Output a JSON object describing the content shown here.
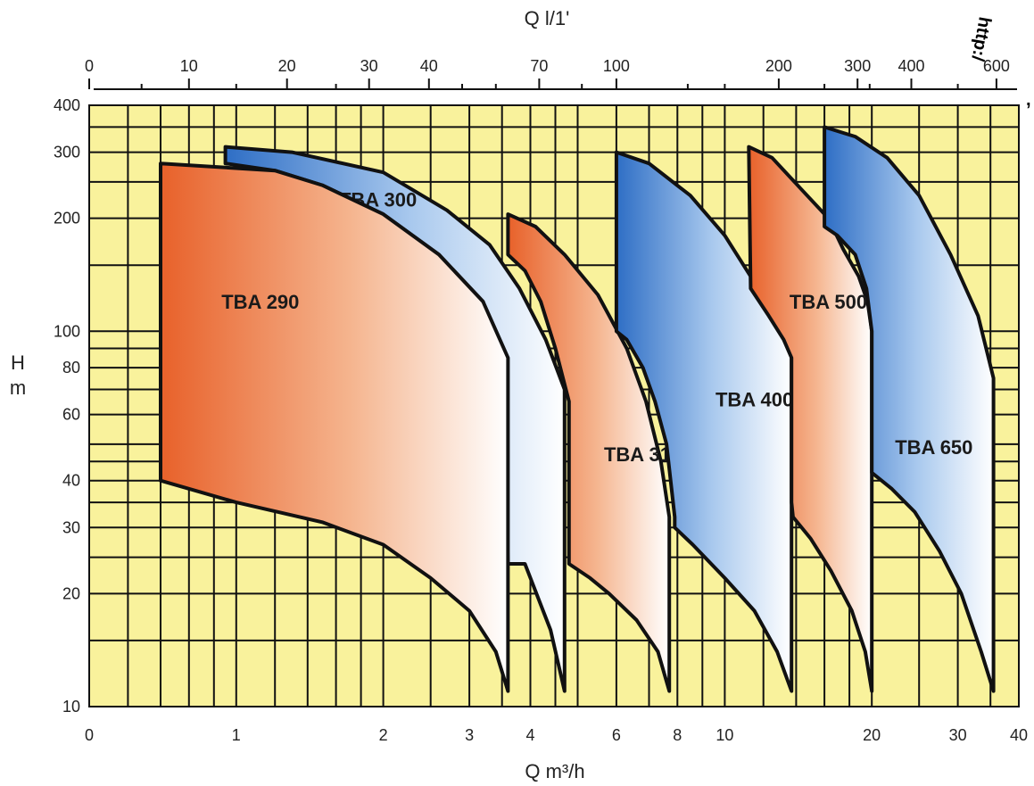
{
  "chart_data": {
    "type": "area",
    "title": "",
    "xlabel": "Q m³/h",
    "x2label": "Q l/1'",
    "ylabel_line1": "H",
    "ylabel_line2": "m",
    "xscale": "log",
    "yscale": "log",
    "xlim": [
      0.5,
      40
    ],
    "ylim": [
      10,
      400
    ],
    "x2_per_x": 16.6667,
    "x_ticks": [
      {
        "v": 0.5,
        "label": "0"
      },
      {
        "v": 1,
        "label": "1"
      },
      {
        "v": 2,
        "label": "2"
      },
      {
        "v": 3,
        "label": "3"
      },
      {
        "v": 4,
        "label": "4"
      },
      {
        "v": 6,
        "label": "6"
      },
      {
        "v": 8,
        "label": "8"
      },
      {
        "v": 10,
        "label": "10"
      },
      {
        "v": 20,
        "label": "20"
      },
      {
        "v": 30,
        "label": "30"
      },
      {
        "v": 40,
        "label": "40"
      }
    ],
    "x_grid": [
      0.5,
      0.6,
      0.7,
      0.8,
      0.9,
      1,
      1.2,
      1.4,
      1.6,
      1.8,
      2,
      2.5,
      3,
      3.5,
      4,
      4.5,
      5,
      6,
      7,
      8,
      9,
      10,
      12,
      14,
      16,
      18,
      20,
      25,
      30,
      35,
      40
    ],
    "x2_ticks": [
      {
        "v": 0.5,
        "label": "0"
      },
      {
        "v": 0.8,
        "label": "10"
      },
      {
        "v": 1.27,
        "label": "20"
      },
      {
        "v": 1.87,
        "label": "30"
      },
      {
        "v": 2.48,
        "label": "40"
      },
      {
        "v": 4.17,
        "label": "70"
      },
      {
        "v": 6.0,
        "label": "100"
      },
      {
        "v": 12.9,
        "label": "200"
      },
      {
        "v": 18.7,
        "label": "300"
      },
      {
        "v": 24.1,
        "label": "400"
      },
      {
        "v": 36.0,
        "label": "600"
      }
    ],
    "x2_minor": [
      0.64,
      1.0,
      1.6,
      2.9,
      3.4,
      5.1,
      8.4,
      10.0,
      16.0,
      19.8,
      30.0
    ],
    "y_ticks": [
      {
        "v": 10,
        "label": "10"
      },
      {
        "v": 20,
        "label": "20"
      },
      {
        "v": 30,
        "label": "30"
      },
      {
        "v": 40,
        "label": "40"
      },
      {
        "v": 60,
        "label": "60"
      },
      {
        "v": 80,
        "label": "80"
      },
      {
        "v": 100,
        "label": "100"
      },
      {
        "v": 200,
        "label": "200"
      },
      {
        "v": 300,
        "label": "300"
      },
      {
        "v": 400,
        "label": "400"
      }
    ],
    "y_grid": [
      10,
      15,
      20,
      25,
      30,
      35,
      40,
      45,
      50,
      60,
      70,
      80,
      90,
      100,
      150,
      200,
      250,
      300,
      350,
      400
    ],
    "series": [
      {
        "name": "TBA 300",
        "color": "blue",
        "label_at": [
          1.95,
          215
        ],
        "boundary": [
          [
            0.95,
            280
          ],
          [
            0.95,
            310
          ],
          [
            1.3,
            300
          ],
          [
            2.0,
            265
          ],
          [
            2.7,
            210
          ],
          [
            3.3,
            170
          ],
          [
            3.8,
            130
          ],
          [
            4.3,
            95
          ],
          [
            4.7,
            70
          ],
          [
            4.7,
            11
          ],
          [
            4.4,
            16
          ],
          [
            3.9,
            24
          ],
          [
            3.6,
            24
          ],
          [
            3.5,
            85
          ],
          [
            3.2,
            120
          ],
          [
            2.6,
            160
          ],
          [
            2.0,
            205
          ],
          [
            1.5,
            245
          ],
          [
            1.2,
            268
          ],
          [
            0.95,
            280
          ]
        ]
      },
      {
        "name": "TBA 290",
        "color": "orange",
        "label_at": [
          1.12,
          115
        ],
        "boundary": [
          [
            0.7,
            280
          ],
          [
            1.2,
            268
          ],
          [
            1.5,
            245
          ],
          [
            2.0,
            205
          ],
          [
            2.6,
            160
          ],
          [
            3.2,
            120
          ],
          [
            3.6,
            85
          ],
          [
            3.6,
            11
          ],
          [
            3.4,
            14
          ],
          [
            3.0,
            18
          ],
          [
            2.5,
            22
          ],
          [
            2.0,
            27
          ],
          [
            1.5,
            31
          ],
          [
            1.0,
            35
          ],
          [
            0.7,
            40
          ],
          [
            0.7,
            280
          ]
        ]
      },
      {
        "name": "TBA 310",
        "color": "orange",
        "label_at": [
          6.8,
          45
        ],
        "boundary": [
          [
            3.6,
            205
          ],
          [
            4.1,
            190
          ],
          [
            4.7,
            160
          ],
          [
            5.5,
            125
          ],
          [
            6.3,
            90
          ],
          [
            6.9,
            65
          ],
          [
            7.4,
            45
          ],
          [
            7.7,
            32
          ],
          [
            7.7,
            11
          ],
          [
            7.3,
            14
          ],
          [
            6.6,
            17
          ],
          [
            5.8,
            20
          ],
          [
            5.3,
            22
          ],
          [
            4.8,
            24
          ],
          [
            4.8,
            65
          ],
          [
            4.5,
            90
          ],
          [
            4.2,
            120
          ],
          [
            3.9,
            145
          ],
          [
            3.6,
            160
          ],
          [
            3.6,
            205
          ]
        ]
      },
      {
        "name": "TBA 400",
        "color": "blue",
        "label_at": [
          11.5,
          63
        ],
        "boundary": [
          [
            6.0,
            300
          ],
          [
            7.0,
            280
          ],
          [
            8.5,
            230
          ],
          [
            10.0,
            180
          ],
          [
            11.3,
            140
          ],
          [
            12.5,
            110
          ],
          [
            13.7,
            90
          ],
          [
            13.7,
            11
          ],
          [
            12.8,
            14
          ],
          [
            11.5,
            18
          ],
          [
            10.0,
            22
          ],
          [
            8.6,
            27
          ],
          [
            7.9,
            30
          ],
          [
            7.9,
            32
          ],
          [
            7.6,
            50
          ],
          [
            7.2,
            65
          ],
          [
            6.8,
            80
          ],
          [
            6.3,
            95
          ],
          [
            6.0,
            100
          ],
          [
            6.0,
            300
          ]
        ]
      },
      {
        "name": "TBA 500",
        "color": "orange",
        "label_at": [
          16.3,
          115
        ],
        "boundary": [
          [
            11.2,
            310
          ],
          [
            12.5,
            290
          ],
          [
            14.3,
            240
          ],
          [
            16.3,
            200
          ],
          [
            17.5,
            165
          ],
          [
            18.8,
            140
          ],
          [
            19.6,
            120
          ],
          [
            20.0,
            100
          ],
          [
            20.0,
            11
          ],
          [
            19.4,
            14
          ],
          [
            18.2,
            18
          ],
          [
            16.5,
            23
          ],
          [
            15.0,
            28
          ],
          [
            13.8,
            32
          ],
          [
            13.7,
            35
          ],
          [
            13.7,
            85
          ],
          [
            13.2,
            95
          ],
          [
            12.3,
            110
          ],
          [
            11.3,
            130
          ],
          [
            11.2,
            310
          ]
        ]
      },
      {
        "name": "TBA 650",
        "color": "blue",
        "label_at": [
          26.8,
          47
        ],
        "boundary": [
          [
            16.0,
            350
          ],
          [
            18.5,
            330
          ],
          [
            21.5,
            290
          ],
          [
            25.0,
            230
          ],
          [
            29.0,
            160
          ],
          [
            33.0,
            110
          ],
          [
            35.5,
            75
          ],
          [
            35.5,
            11
          ],
          [
            33.5,
            14
          ],
          [
            30.5,
            20
          ],
          [
            27.5,
            26
          ],
          [
            24.5,
            33
          ],
          [
            22.0,
            38
          ],
          [
            20.0,
            42
          ],
          [
            20.0,
            100
          ],
          [
            19.5,
            130
          ],
          [
            18.5,
            160
          ],
          [
            17.0,
            180
          ],
          [
            16.0,
            190
          ],
          [
            16.0,
            350
          ]
        ]
      }
    ]
  },
  "watermark": {
    "text": "http:/",
    "tail": ","
  }
}
